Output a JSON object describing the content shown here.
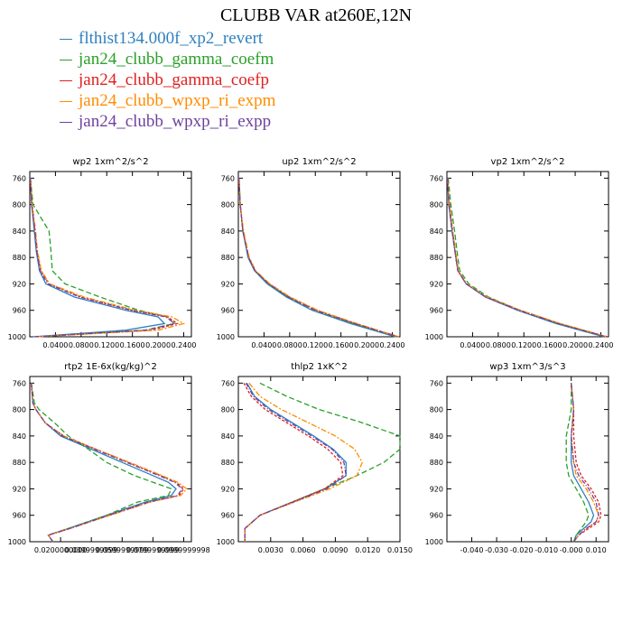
{
  "title": "CLUBB VAR at260E,12N",
  "legend": [
    {
      "label": "flthist134.000f_xp2_revert",
      "color": "#2f80c0"
    },
    {
      "label": "jan24_clubb_gamma_coefm",
      "color": "#2aa02a"
    },
    {
      "label": "jan24_clubb_gamma_coefp",
      "color": "#e02020"
    },
    {
      "label": "jan24_clubb_wpxp_ri_expm",
      "color": "#ff8c00"
    },
    {
      "label": "jan24_clubb_wpxp_ri_expp",
      "color": "#7040a0"
    }
  ],
  "chart_data": [
    {
      "type": "line",
      "title": "wp2   1xm^2/s^2",
      "ylim": [
        1000,
        750
      ],
      "yticks": [
        "760",
        "800",
        "840",
        "880",
        "920",
        "960",
        "1000"
      ],
      "xlim": [
        0,
        0.252
      ],
      "xticks": [
        "0.0400",
        "0.0800",
        "0.1200",
        "0.1600",
        "0.2000",
        "0.2400"
      ],
      "y": [
        760,
        800,
        840,
        870,
        900,
        920,
        940,
        960,
        970,
        980,
        990,
        1000
      ],
      "series": [
        {
          "name": "flthist134.000f_xp2_revert",
          "x": [
            0.001,
            0.003,
            0.007,
            0.01,
            0.015,
            0.025,
            0.07,
            0.15,
            0.2,
            0.21,
            0.15,
            0.005
          ]
        },
        {
          "name": "jan24_clubb_gamma_coefm",
          "x": [
            0.001,
            0.005,
            0.03,
            0.033,
            0.035,
            0.055,
            0.11,
            0.17,
            0.215,
            0.225,
            0.18,
            0.008
          ]
        },
        {
          "name": "jan24_clubb_gamma_coefp",
          "x": [
            0.001,
            0.003,
            0.008,
            0.011,
            0.017,
            0.03,
            0.08,
            0.16,
            0.215,
            0.23,
            0.19,
            0.008
          ]
        },
        {
          "name": "jan24_clubb_wpxp_ri_expm",
          "x": [
            0.001,
            0.004,
            0.009,
            0.012,
            0.018,
            0.031,
            0.085,
            0.165,
            0.222,
            0.24,
            0.2,
            0.01
          ]
        },
        {
          "name": "jan24_clubb_wpxp_ri_expp",
          "x": [
            0.001,
            0.003,
            0.008,
            0.011,
            0.016,
            0.028,
            0.078,
            0.158,
            0.212,
            0.226,
            0.18,
            0.008
          ]
        }
      ]
    },
    {
      "type": "line",
      "title": "up2   1xm^2/s^2",
      "ylim": [
        1000,
        750
      ],
      "yticks": [
        "760",
        "800",
        "840",
        "880",
        "920",
        "960",
        "1000"
      ],
      "xlim": [
        0,
        0.252
      ],
      "xticks": [
        "0.0400",
        "0.0800",
        "0.1200",
        "0.1600",
        "0.2000",
        "0.2400"
      ],
      "y": [
        760,
        800,
        840,
        880,
        900,
        920,
        940,
        960,
        980,
        1000
      ],
      "series": [
        {
          "name": "flthist134.000f_xp2_revert",
          "x": [
            0.001,
            0.003,
            0.007,
            0.015,
            0.025,
            0.045,
            0.075,
            0.115,
            0.175,
            0.245
          ]
        },
        {
          "name": "jan24_clubb_gamma_coefm",
          "x": [
            0.001,
            0.003,
            0.007,
            0.016,
            0.026,
            0.047,
            0.078,
            0.119,
            0.18,
            0.247
          ]
        },
        {
          "name": "jan24_clubb_gamma_coefp",
          "x": [
            0.001,
            0.003,
            0.007,
            0.016,
            0.026,
            0.048,
            0.08,
            0.122,
            0.183,
            0.25
          ]
        },
        {
          "name": "jan24_clubb_wpxp_ri_expm",
          "x": [
            0.001,
            0.003,
            0.008,
            0.017,
            0.027,
            0.049,
            0.081,
            0.124,
            0.185,
            0.25
          ]
        },
        {
          "name": "jan24_clubb_wpxp_ri_expp",
          "x": [
            0.001,
            0.003,
            0.007,
            0.016,
            0.026,
            0.047,
            0.078,
            0.12,
            0.181,
            0.248
          ]
        }
      ]
    },
    {
      "type": "line",
      "title": "vp2   1xm^2/s^2",
      "ylim": [
        1000,
        750
      ],
      "yticks": [
        "760",
        "800",
        "840",
        "880",
        "920",
        "960",
        "1000"
      ],
      "xlim": [
        0,
        0.252
      ],
      "xticks": [
        "0.0400",
        "0.0800",
        "0.1200",
        "0.1600",
        "0.2000",
        "0.2400"
      ],
      "y": [
        760,
        800,
        840,
        880,
        900,
        920,
        940,
        960,
        980,
        1000
      ],
      "series": [
        {
          "name": "flthist134.000f_xp2_revert",
          "x": [
            0.001,
            0.003,
            0.008,
            0.014,
            0.017,
            0.03,
            0.06,
            0.11,
            0.17,
            0.245
          ]
        },
        {
          "name": "jan24_clubb_gamma_coefm",
          "x": [
            0.002,
            0.006,
            0.012,
            0.017,
            0.02,
            0.034,
            0.065,
            0.114,
            0.175,
            0.248
          ]
        },
        {
          "name": "jan24_clubb_gamma_coefp",
          "x": [
            0.001,
            0.004,
            0.009,
            0.014,
            0.017,
            0.03,
            0.062,
            0.114,
            0.176,
            0.25
          ]
        },
        {
          "name": "jan24_clubb_wpxp_ri_expm",
          "x": [
            0.001,
            0.004,
            0.009,
            0.015,
            0.018,
            0.031,
            0.063,
            0.115,
            0.177,
            0.25
          ]
        },
        {
          "name": "jan24_clubb_wpxp_ri_expp",
          "x": [
            0.001,
            0.003,
            0.008,
            0.014,
            0.017,
            0.03,
            0.061,
            0.112,
            0.173,
            0.248
          ]
        }
      ]
    },
    {
      "type": "line",
      "title": "rtp2   1E-6x(kg/kg)^2",
      "ylim": [
        1000,
        750
      ],
      "yticks": [
        "760",
        "800",
        "840",
        "880",
        "920",
        "960",
        "1000"
      ],
      "xlim": [
        0,
        0.105
      ],
      "xticks": [
        "0.0200000000",
        "0.0399999999",
        "0.0599999999",
        "0.0799999999",
        "0.0999999998"
      ],
      "y": [
        760,
        790,
        800,
        820,
        840,
        860,
        880,
        900,
        910,
        920,
        930,
        940,
        960,
        980,
        990,
        1000
      ],
      "series": [
        {
          "name": "flthist134.000f_xp2_revert",
          "x": [
            0.001,
            0.002,
            0.004,
            0.01,
            0.02,
            0.04,
            0.06,
            0.08,
            0.09,
            0.095,
            0.092,
            0.075,
            0.05,
            0.025,
            0.012,
            0.015
          ]
        },
        {
          "name": "jan24_clubb_gamma_coefm",
          "x": [
            0.001,
            0.003,
            0.006,
            0.016,
            0.025,
            0.038,
            0.05,
            0.068,
            0.08,
            0.092,
            0.09,
            0.07,
            0.05,
            0.025,
            0.012,
            0.015
          ]
        },
        {
          "name": "jan24_clubb_gamma_coefp",
          "x": [
            0.001,
            0.002,
            0.004,
            0.01,
            0.022,
            0.043,
            0.064,
            0.085,
            0.095,
            0.1,
            0.097,
            0.078,
            0.052,
            0.026,
            0.012,
            0.015
          ]
        },
        {
          "name": "jan24_clubb_wpxp_ri_expm",
          "x": [
            0.001,
            0.002,
            0.004,
            0.01,
            0.022,
            0.043,
            0.065,
            0.086,
            0.096,
            0.102,
            0.098,
            0.078,
            0.052,
            0.026,
            0.012,
            0.015
          ]
        },
        {
          "name": "jan24_clubb_wpxp_ri_expp",
          "x": [
            0.001,
            0.002,
            0.004,
            0.01,
            0.021,
            0.042,
            0.063,
            0.084,
            0.094,
            0.099,
            0.096,
            0.077,
            0.051,
            0.026,
            0.012,
            0.015
          ]
        }
      ]
    },
    {
      "type": "line",
      "title": "thlp2   1xK^2",
      "ylim": [
        1000,
        750
      ],
      "yticks": [
        "760",
        "800",
        "840",
        "880",
        "920",
        "960",
        "1000"
      ],
      "xlim": [
        0,
        0.015
      ],
      "xticks": [
        "0.0030",
        "0.0060",
        "0.0090",
        "0.0120",
        "0.0150"
      ],
      "y": [
        760,
        780,
        800,
        820,
        840,
        860,
        880,
        900,
        920,
        940,
        960,
        980,
        1000
      ],
      "series": [
        {
          "name": "flthist134.000f_xp2_revert",
          "x": [
            0.0008,
            0.0015,
            0.003,
            0.005,
            0.007,
            0.0088,
            0.01,
            0.01,
            0.008,
            0.005,
            0.002,
            0.0006,
            0.0006
          ]
        },
        {
          "name": "jan24_clubb_gamma_coefm",
          "x": [
            0.002,
            0.0045,
            0.0075,
            0.0115,
            0.015,
            0.015,
            0.0135,
            0.011,
            0.008,
            0.005,
            0.002,
            0.0006,
            0.0006
          ]
        },
        {
          "name": "jan24_clubb_gamma_coefp",
          "x": [
            0.0005,
            0.0012,
            0.0025,
            0.0045,
            0.0065,
            0.0083,
            0.0095,
            0.0097,
            0.008,
            0.005,
            0.002,
            0.0006,
            0.0006
          ]
        },
        {
          "name": "jan24_clubb_wpxp_ri_expm",
          "x": [
            0.001,
            0.002,
            0.004,
            0.0065,
            0.009,
            0.0108,
            0.0115,
            0.011,
            0.0085,
            0.0052,
            0.002,
            0.0006,
            0.0006
          ]
        },
        {
          "name": "jan24_clubb_wpxp_ri_expp",
          "x": [
            0.0007,
            0.0014,
            0.0028,
            0.0048,
            0.0068,
            0.0087,
            0.0098,
            0.01,
            0.0082,
            0.0051,
            0.002,
            0.0006,
            0.0006
          ]
        }
      ]
    },
    {
      "type": "line",
      "title": "wp3   1xm^3/s^3",
      "ylim": [
        1000,
        750
      ],
      "yticks": [
        "760",
        "800",
        "840",
        "880",
        "920",
        "960",
        "1000"
      ],
      "xlim": [
        -0.05,
        0.015
      ],
      "xticks": [
        "-0.040",
        "-0.030",
        "-0.020",
        "-0.010",
        "-0.000",
        "0.010"
      ],
      "y": [
        760,
        800,
        840,
        880,
        900,
        920,
        940,
        960,
        970,
        980,
        990,
        1000
      ],
      "series": [
        {
          "name": "flthist134.000f_xp2_revert",
          "x": [
            0.0,
            0.001,
            0.0,
            0.0,
            0.001,
            0.004,
            0.007,
            0.009,
            0.008,
            0.005,
            0.002,
            0.001
          ]
        },
        {
          "name": "jan24_clubb_gamma_coefm",
          "x": [
            0.0,
            0.0,
            -0.002,
            -0.002,
            -0.001,
            0.002,
            0.005,
            0.007,
            0.006,
            0.004,
            0.002,
            0.001
          ]
        },
        {
          "name": "jan24_clubb_gamma_coefp",
          "x": [
            0.0,
            0.001,
            0.001,
            0.002,
            0.004,
            0.008,
            0.011,
            0.012,
            0.011,
            0.007,
            0.003,
            0.001
          ]
        },
        {
          "name": "jan24_clubb_wpxp_ri_expm",
          "x": [
            0.0,
            0.001,
            0.0,
            0.001,
            0.002,
            0.006,
            0.009,
            0.011,
            0.01,
            0.006,
            0.003,
            0.001
          ]
        },
        {
          "name": "jan24_clubb_wpxp_ri_expp",
          "x": [
            0.0,
            0.001,
            0.0,
            0.001,
            0.003,
            0.007,
            0.01,
            0.011,
            0.01,
            0.006,
            0.003,
            0.001
          ]
        }
      ]
    }
  ]
}
